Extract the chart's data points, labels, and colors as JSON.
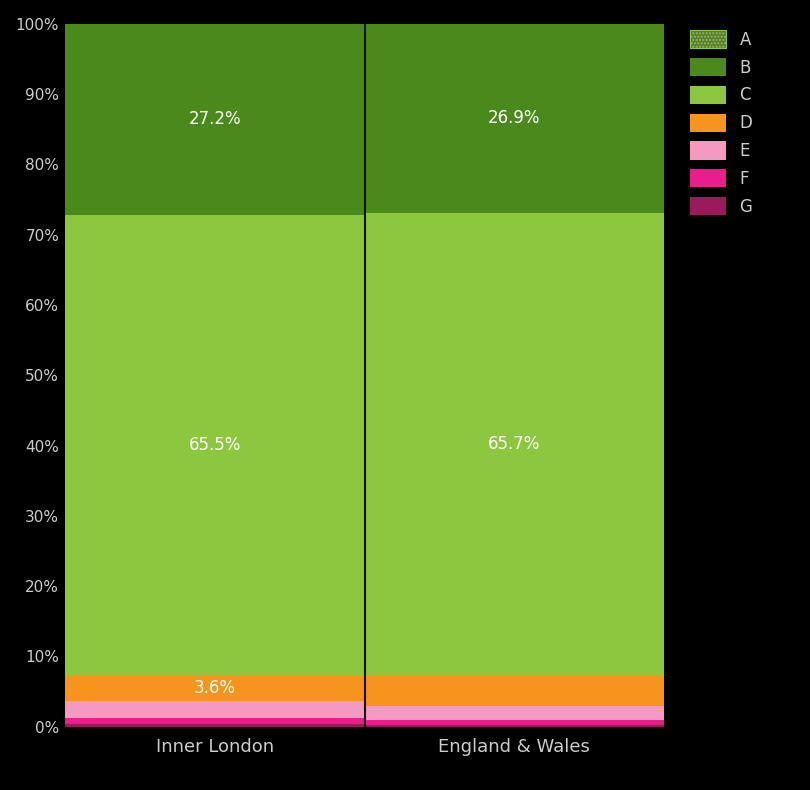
{
  "categories": [
    "Inner London",
    "England & Wales"
  ],
  "segments": [
    "G",
    "F",
    "E",
    "D",
    "C",
    "B",
    "A"
  ],
  "values": {
    "Inner London": [
      0.4,
      0.8,
      2.5,
      3.6,
      65.5,
      27.2,
      0.0
    ],
    "England & Wales": [
      0.3,
      0.6,
      2.0,
      4.5,
      65.7,
      26.9,
      0.0
    ]
  },
  "labeled_segments": {
    "Inner London": {
      "C": "65.5%",
      "B": "27.2%",
      "D": "3.6%"
    },
    "England & Wales": {
      "C": "65.7%",
      "B": "26.9%"
    }
  },
  "colors": {
    "A": "#5a7a3a",
    "B": "#4a8a1c",
    "C": "#8dc63f",
    "D": "#f7941d",
    "E": "#f49ac1",
    "F": "#e91e8c",
    "G": "#9b1a5a"
  },
  "background_color": "#000000",
  "text_color": "#cccccc",
  "ylabel_ticks": [
    "0%",
    "10%",
    "20%",
    "30%",
    "40%",
    "50%",
    "60%",
    "70%",
    "80%",
    "90%",
    "100%"
  ],
  "figsize": [
    8.1,
    7.9
  ],
  "dpi": 100
}
